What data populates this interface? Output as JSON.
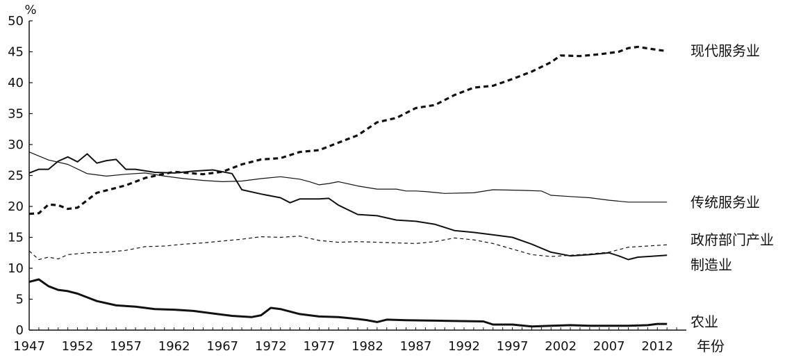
{
  "chart_data": {
    "type": "line",
    "ylabel": "%",
    "xlabel": "年份",
    "ylim": [
      0,
      50
    ],
    "xlim": [
      1947,
      2015
    ],
    "yticks": [
      0,
      5,
      10,
      15,
      20,
      25,
      30,
      35,
      40,
      45,
      50
    ],
    "xticks": [
      1947,
      1952,
      1957,
      1962,
      1967,
      1972,
      1977,
      1982,
      1987,
      1992,
      1997,
      2002,
      2007,
      2012
    ],
    "grid": false,
    "legend": "none",
    "series": [
      {
        "name": "现代服务业",
        "style": "dashed-thick",
        "x": [
          1947,
          1948,
          1949,
          1950,
          1951,
          1952,
          1953,
          1954,
          1955,
          1957,
          1959,
          1962,
          1965,
          1967,
          1969,
          1971,
          1973,
          1975,
          1977,
          1979,
          1981,
          1983,
          1985,
          1987,
          1989,
          1991,
          1993,
          1995,
          1997,
          1999,
          2001,
          2002,
          2004,
          2006,
          2008,
          2009,
          2010,
          2012,
          2013
        ],
        "values": [
          18.8,
          18.9,
          20.3,
          20.2,
          19.6,
          19.8,
          21.0,
          22.2,
          22.6,
          23.4,
          24.6,
          25.6,
          25.2,
          25.6,
          26.8,
          27.6,
          27.8,
          28.8,
          29.1,
          30.3,
          31.5,
          33.6,
          34.3,
          35.9,
          36.4,
          38.0,
          39.2,
          39.5,
          40.6,
          41.8,
          43.3,
          44.4,
          44.3,
          44.6,
          45.0,
          45.6,
          45.8,
          45.3,
          45.1
        ]
      },
      {
        "name": "传统服务业",
        "style": "solid-thin",
        "x": [
          1947,
          1949,
          1951,
          1953,
          1955,
          1957,
          1959,
          1961,
          1963,
          1965,
          1967,
          1969,
          1971,
          1973,
          1975,
          1976,
          1977,
          1978,
          1979,
          1981,
          1983,
          1985,
          1986,
          1987,
          1988,
          1990,
          1993,
          1995,
          1998,
          2000,
          2001,
          2003,
          2005,
          2007,
          2009,
          2011,
          2013
        ],
        "values": [
          28.8,
          27.5,
          26.8,
          25.3,
          24.9,
          25.2,
          25.4,
          24.9,
          24.5,
          24.2,
          24.0,
          24.1,
          24.5,
          24.8,
          24.4,
          24.0,
          23.5,
          23.7,
          24.0,
          23.3,
          22.8,
          22.8,
          22.5,
          22.5,
          22.4,
          22.1,
          22.2,
          22.7,
          22.6,
          22.5,
          21.8,
          21.6,
          21.4,
          21.0,
          20.7,
          20.7,
          20.7
        ]
      },
      {
        "name": "政府部门产业",
        "style": "dashed-thin",
        "x": [
          1947,
          1948,
          1949,
          1950,
          1951,
          1953,
          1955,
          1957,
          1959,
          1961,
          1963,
          1965,
          1967,
          1969,
          1971,
          1973,
          1975,
          1977,
          1979,
          1981,
          1983,
          1985,
          1987,
          1989,
          1991,
          1993,
          1995,
          1997,
          1999,
          2001,
          2003,
          2005,
          2007,
          2009,
          2011,
          2013
        ],
        "values": [
          12.8,
          11.4,
          11.8,
          11.5,
          12.2,
          12.5,
          12.6,
          12.9,
          13.5,
          13.6,
          13.9,
          14.1,
          14.4,
          14.7,
          15.1,
          15.0,
          15.2,
          14.5,
          14.2,
          14.3,
          14.2,
          14.1,
          14.0,
          14.3,
          14.9,
          14.6,
          14.0,
          13.1,
          12.2,
          11.9,
          12.1,
          12.3,
          12.6,
          13.4,
          13.6,
          13.8
        ]
      },
      {
        "name": "制造业",
        "style": "solid-medium",
        "x": [
          1947,
          1948,
          1949,
          1950,
          1951,
          1952,
          1953,
          1954,
          1955,
          1956,
          1957,
          1958,
          1960,
          1962,
          1964,
          1966,
          1968,
          1969,
          1971,
          1973,
          1974,
          1975,
          1977,
          1978,
          1979,
          1981,
          1983,
          1985,
          1987,
          1989,
          1991,
          1993,
          1995,
          1997,
          1999,
          2001,
          2003,
          2005,
          2007,
          2008,
          2009,
          2010,
          2011,
          2013
        ],
        "values": [
          25.4,
          26.0,
          26.0,
          27.3,
          28.0,
          27.2,
          28.5,
          27.0,
          27.4,
          27.6,
          26.0,
          26.0,
          25.5,
          25.4,
          25.7,
          25.9,
          25.3,
          22.7,
          22.0,
          21.4,
          20.6,
          21.2,
          21.2,
          21.3,
          20.2,
          18.7,
          18.5,
          17.8,
          17.6,
          17.1,
          16.1,
          15.8,
          15.4,
          15.0,
          13.9,
          12.6,
          12.0,
          12.2,
          12.5,
          12.0,
          11.4,
          11.8,
          11.9,
          12.1
        ]
      },
      {
        "name": "农业",
        "style": "solid-thick",
        "x": [
          1947,
          1948,
          1949,
          1950,
          1951,
          1952,
          1954,
          1956,
          1958,
          1960,
          1962,
          1964,
          1966,
          1968,
          1970,
          1971,
          1972,
          1973,
          1974,
          1975,
          1977,
          1979,
          1981,
          1982,
          1983,
          1984,
          1986,
          1990,
          1994,
          1995,
          1997,
          1999,
          2001,
          2003,
          2005,
          2007,
          2009,
          2011,
          2012,
          2013
        ],
        "values": [
          7.8,
          8.2,
          7.1,
          6.5,
          6.3,
          5.9,
          4.7,
          4.0,
          3.8,
          3.4,
          3.3,
          3.1,
          2.7,
          2.3,
          2.1,
          2.4,
          3.6,
          3.4,
          3.0,
          2.6,
          2.2,
          2.1,
          1.8,
          1.6,
          1.3,
          1.7,
          1.6,
          1.5,
          1.4,
          0.9,
          0.9,
          0.6,
          0.7,
          0.8,
          0.7,
          0.7,
          0.7,
          0.8,
          1.0,
          1.0
        ]
      }
    ]
  }
}
